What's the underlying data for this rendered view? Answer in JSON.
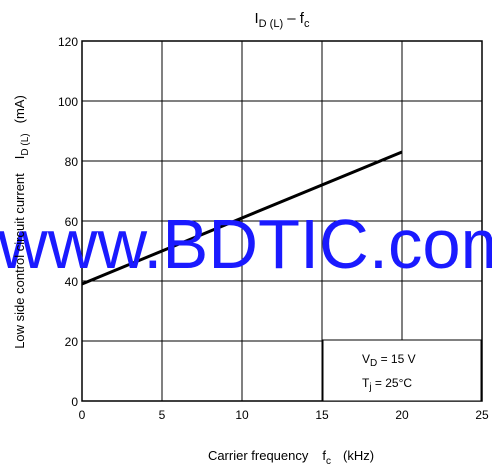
{
  "chart_data": {
    "type": "line",
    "title": {
      "main": "I",
      "main_sub": "D (L)",
      "sep": " – f",
      "sep_sub": "c"
    },
    "xlabel": {
      "text": "Carrier frequency",
      "symbol": "f",
      "symbol_sub": "c",
      "unit": "(kHz)"
    },
    "ylabel": {
      "text": "Low side control circuit current",
      "symbol": "I",
      "symbol_sub": "D (L)",
      "unit": "(mA)"
    },
    "xlim": [
      0,
      25
    ],
    "ylim": [
      0,
      120
    ],
    "x_ticks": [
      "0",
      "5",
      "10",
      "15",
      "20",
      "25"
    ],
    "y_ticks": [
      "0",
      "20",
      "40",
      "60",
      "80",
      "100",
      "120"
    ],
    "grid": true,
    "series": [
      {
        "x": [
          0,
          20
        ],
        "y": [
          39,
          83
        ],
        "color": "#000000"
      }
    ],
    "conditions": [
      {
        "symbol": "V",
        "sub": "D",
        "value": " = 15 V"
      },
      {
        "symbol": "T",
        "sub": "j",
        "value": " = 25°C"
      }
    ]
  },
  "watermark": {
    "text": "www.BDTIC.com",
    "color": "#1a1aff"
  }
}
